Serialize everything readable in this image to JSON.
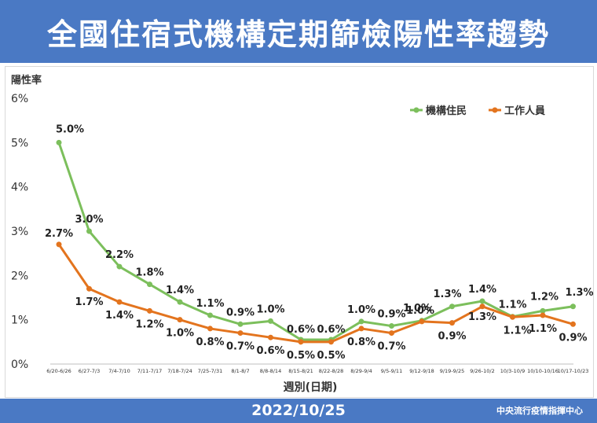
{
  "page": {
    "title": "全國住宿式機構定期篩檢陽性率趨勢",
    "date": "2022/10/25",
    "source": "中央流行疫情指揮中心"
  },
  "colors": {
    "header_bg": "#4a79c4",
    "residents": "#7cbf5c",
    "staff": "#e3741e"
  },
  "chart_data": {
    "type": "line",
    "title": "全國住宿式機構定期篩檢陽性率趨勢",
    "xlabel": "週別(日期)",
    "ylabel": "陽性率",
    "ylim": [
      0,
      6
    ],
    "yticks": [
      "0%",
      "1%",
      "2%",
      "3%",
      "4%",
      "5%",
      "6%"
    ],
    "grid": false,
    "legend_position": "top-right",
    "categories": [
      "6/20-6/26",
      "6/27-7/3",
      "7/4-7/10",
      "7/11-7/17",
      "7/18-7/24",
      "7/25-7/31",
      "8/1-8/7",
      "8/8-8/14",
      "8/15-8/21",
      "8/22-8/28",
      "8/29-9/4",
      "9/5-9/11",
      "9/12-9/18",
      "9/19-9/25",
      "9/26-10/2",
      "10/3-10/9",
      "10/10-10/16",
      "10/17-10/23"
    ],
    "series": [
      {
        "name": "機構住民",
        "values": [
          5.0,
          3.0,
          2.2,
          1.8,
          1.4,
          1.1,
          0.9,
          0.97,
          0.55,
          0.55,
          0.96,
          0.86,
          0.98,
          1.3,
          1.42,
          1.07,
          1.2,
          1.3
        ],
        "labels": [
          "5.0%",
          "3.0%",
          "2.2%",
          "1.8%",
          "1.4%",
          "1.1%",
          "0.9%",
          "1.0%",
          "0.6%",
          "0.6%",
          "1.0%",
          "0.9%",
          "1.0%",
          "1.3%",
          "1.4%",
          "1.1%",
          "1.2%",
          "1.3%"
        ]
      },
      {
        "name": "工作人員",
        "values": [
          2.7,
          1.7,
          1.4,
          1.2,
          1.0,
          0.8,
          0.7,
          0.6,
          0.5,
          0.5,
          0.8,
          0.7,
          0.96,
          0.93,
          1.3,
          1.06,
          1.1,
          0.9
        ],
        "labels": [
          "2.7%",
          "1.7%",
          "1.4%",
          "1.2%",
          "1.0%",
          "0.8%",
          "0.7%",
          "0.6%",
          "0.5%",
          "0.5%",
          "0.8%",
          "0.7%",
          "1.0%",
          "0.9%",
          "1.3%",
          "1.1%",
          "1.1%",
          "0.9%"
        ]
      }
    ]
  }
}
